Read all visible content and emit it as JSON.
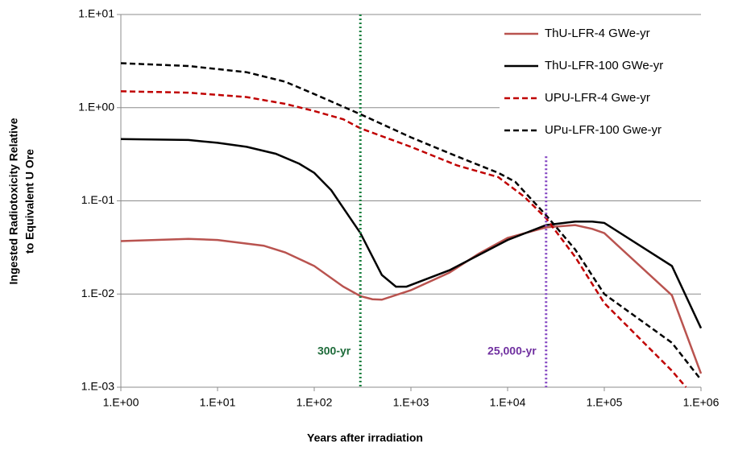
{
  "chart_data": {
    "type": "line",
    "xlabel": "Years after irradiation",
    "ylabel": [
      "Ingested  Radiotoxicity Relative",
      "to Equivalent U Ore"
    ],
    "xscale": "log",
    "yscale": "log",
    "xlim": [
      1,
      1000000
    ],
    "ylim": [
      0.001,
      10
    ],
    "xticks": [
      {
        "value": 1,
        "label": "1.E+00"
      },
      {
        "value": 10,
        "label": "1.E+01"
      },
      {
        "value": 100,
        "label": "1.E+02"
      },
      {
        "value": 1000,
        "label": "1.E+03"
      },
      {
        "value": 10000,
        "label": "1.E+04"
      },
      {
        "value": 100000,
        "label": "1.E+05"
      },
      {
        "value": 1000000,
        "label": "1.E+06"
      }
    ],
    "yticks": [
      {
        "value": 0.001,
        "label": "1.E-03"
      },
      {
        "value": 0.01,
        "label": "1.E-02"
      },
      {
        "value": 0.1,
        "label": "1.E-01"
      },
      {
        "value": 1,
        "label": "1.E+00"
      },
      {
        "value": 10,
        "label": "1.E+01"
      }
    ],
    "grid": true,
    "legend": "top-right",
    "series": [
      {
        "name": "ThU-LFR-4 GWe-yr",
        "color": "#b9534f",
        "dash": "solid",
        "x": [
          1,
          5,
          10,
          30,
          50,
          100,
          200,
          300,
          400,
          500,
          1000,
          2500,
          5000,
          10000,
          25000,
          50000,
          75000,
          100000,
          500000,
          1000000
        ],
        "values": [
          0.037,
          0.039,
          0.038,
          0.033,
          0.028,
          0.02,
          0.012,
          0.0095,
          0.0088,
          0.0087,
          0.011,
          0.017,
          0.027,
          0.04,
          0.052,
          0.055,
          0.05,
          0.045,
          0.0097,
          0.0014
        ]
      },
      {
        "name": "ThU-LFR-100 GWe-yr",
        "color": "#000000",
        "dash": "solid",
        "x": [
          1,
          5,
          10,
          20,
          40,
          70,
          100,
          150,
          300,
          500,
          700,
          900,
          2500,
          10000,
          25000,
          50000,
          75000,
          100000,
          500000,
          1000000
        ],
        "values": [
          0.46,
          0.45,
          0.42,
          0.38,
          0.32,
          0.25,
          0.2,
          0.13,
          0.045,
          0.016,
          0.012,
          0.012,
          0.018,
          0.038,
          0.055,
          0.06,
          0.06,
          0.058,
          0.02,
          0.0043
        ]
      },
      {
        "name": "UPU-LFR-4 Gwe-yr",
        "color": "#c00000",
        "dash": "dashed",
        "x": [
          1,
          5,
          20,
          50,
          100,
          200,
          300,
          1000,
          3000,
          8000,
          15000,
          25000,
          50000,
          100000,
          500000,
          700000
        ],
        "values": [
          1.5,
          1.45,
          1.3,
          1.1,
          0.92,
          0.75,
          0.6,
          0.38,
          0.24,
          0.18,
          0.11,
          0.065,
          0.025,
          0.008,
          0.0015,
          0.001
        ]
      },
      {
        "name": "UPu-LFR-100 Gwe-yr",
        "color": "#000000",
        "dash": "dashed",
        "x": [
          1,
          5,
          20,
          50,
          100,
          300,
          1000,
          3000,
          8000,
          12000,
          25000,
          50000,
          100000,
          500000,
          1000000
        ],
        "values": [
          3.0,
          2.8,
          2.4,
          1.9,
          1.4,
          0.85,
          0.48,
          0.3,
          0.2,
          0.16,
          0.07,
          0.03,
          0.01,
          0.003,
          0.0012
        ]
      }
    ],
    "annotations": [
      {
        "x": 300,
        "label": "300-yr",
        "color": "#1e6b3a",
        "line_color": "#1a8040"
      },
      {
        "x": 25000,
        "label": "25,000-yr",
        "color": "#7030a0",
        "line_color": "#8040c0",
        "ymax": 0.3
      }
    ]
  }
}
